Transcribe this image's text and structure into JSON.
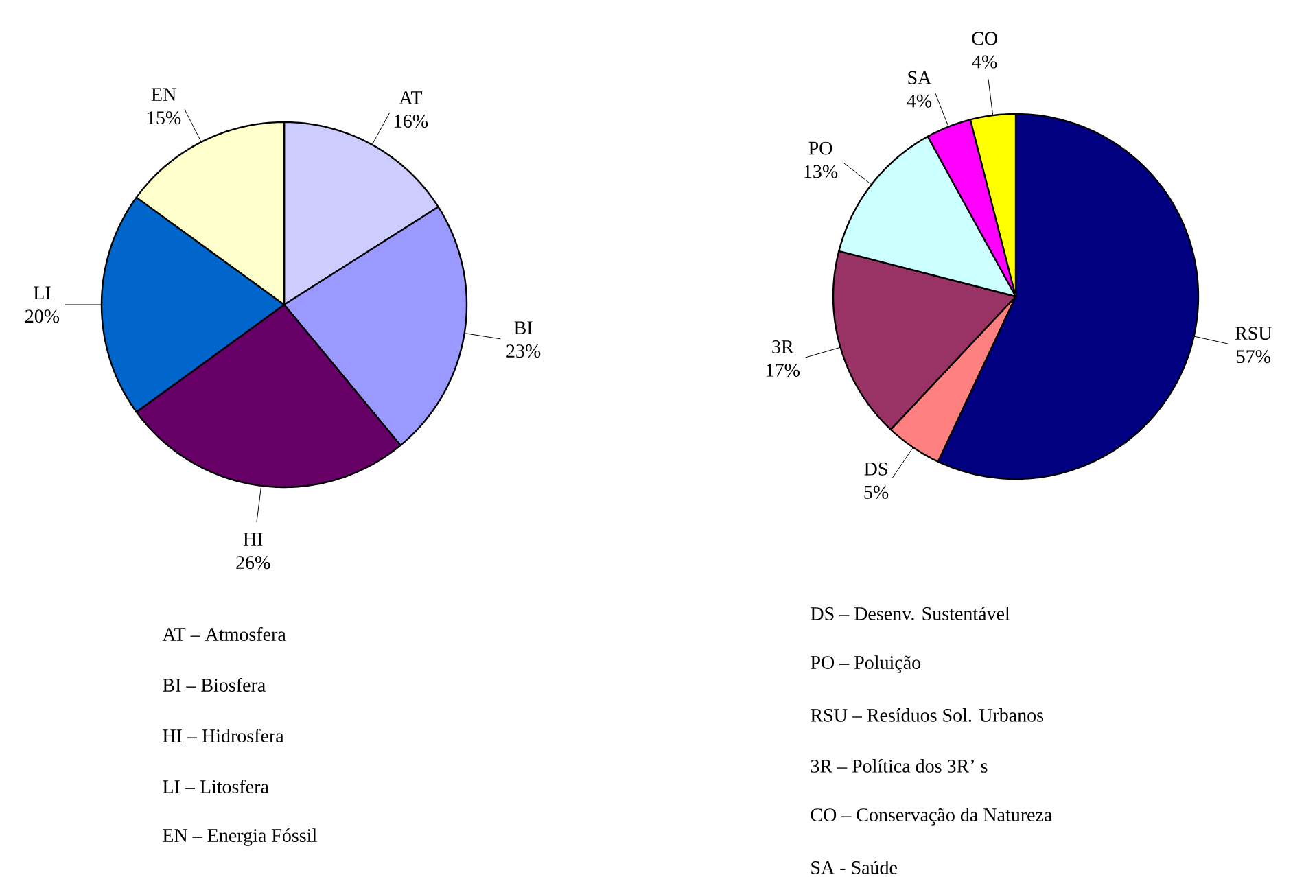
{
  "chart_data": [
    {
      "type": "pie",
      "categories": [
        "AT",
        "BI",
        "HI",
        "LI",
        "EN"
      ],
      "values": [
        16,
        23,
        26,
        20,
        15
      ],
      "value_labels": [
        "16%",
        "23%",
        "26%",
        "20%",
        "15%"
      ],
      "colors": [
        "#ccccff",
        "#9999ff",
        "#660066",
        "#0066cc",
        "#ffffcc"
      ],
      "annotations": [
        "AT – Atmosfera",
        "BI – Biosfera",
        "HI – Hidrosfera",
        "LI – Litosfera",
        "EN – Energia Fóssil"
      ]
    },
    {
      "type": "pie",
      "categories": [
        "RSU",
        "DS",
        "3R",
        "PO",
        "SA",
        "CO"
      ],
      "values": [
        57,
        5,
        17,
        13,
        4,
        4
      ],
      "value_labels": [
        "57%",
        "5%",
        "17%",
        "13%",
        "4%",
        "4%"
      ],
      "colors": [
        "#000080",
        "#ff8080",
        "#993366",
        "#ccffff",
        "#ff00ff",
        "#ffff00"
      ],
      "annotations": [
        "DS – Desenv. Sustentável",
        "PO – Poluição",
        "RSU – Resíduos Sol. Urbanos",
        "3R – Política dos 3R’ s",
        "CO – Conservação da Natureza",
        "SA - Saúde"
      ]
    }
  ]
}
